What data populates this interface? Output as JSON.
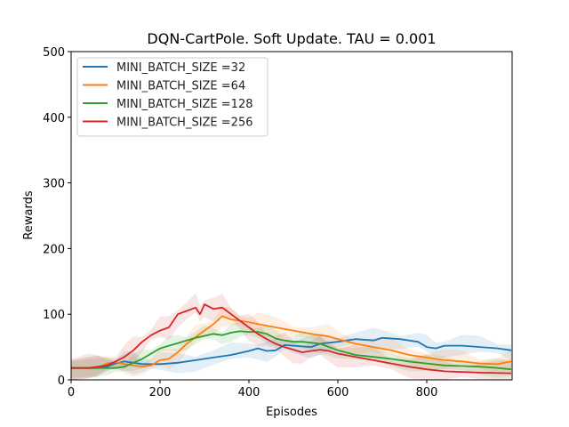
{
  "chart_data": {
    "type": "line",
    "title": "DQN-CartPole. Soft Update. TAU = 0.001",
    "xlabel": "Episodes",
    "ylabel": "Rewards",
    "xlim": [
      0,
      992
    ],
    "ylim": [
      0,
      500
    ],
    "xticks": [
      "0",
      "200",
      "400",
      "600",
      "800"
    ],
    "xtick_values": [
      0,
      200,
      400,
      600,
      800
    ],
    "yticks": [
      "0",
      "100",
      "200",
      "300",
      "400",
      "500"
    ],
    "ytick_values": [
      0,
      100,
      200,
      300,
      400,
      500
    ],
    "grid": false,
    "legend_position": "top-left",
    "series": [
      {
        "name": "MINI_BATCH_SIZE =32",
        "color": "#1f77b4",
        "band": 12,
        "x": [
          0,
          60,
          80,
          100,
          120,
          140,
          160,
          180,
          200,
          240,
          280,
          320,
          360,
          400,
          420,
          440,
          460,
          480,
          500,
          540,
          560,
          600,
          640,
          680,
          700,
          740,
          780,
          800,
          820,
          840,
          880,
          920,
          960,
          990
        ],
        "y": [
          18,
          18,
          20,
          25,
          28,
          26,
          24,
          24,
          24,
          26,
          30,
          34,
          38,
          44,
          48,
          44,
          45,
          53,
          52,
          50,
          55,
          58,
          62,
          60,
          64,
          62,
          58,
          50,
          48,
          52,
          52,
          50,
          48,
          45
        ]
      },
      {
        "name": "MINI_BATCH_SIZE =64",
        "color": "#ff7f0e",
        "band": 12,
        "x": [
          0,
          60,
          80,
          100,
          120,
          140,
          160,
          180,
          200,
          220,
          240,
          260,
          280,
          300,
          320,
          340,
          360,
          380,
          400,
          420,
          460,
          500,
          540,
          580,
          600,
          640,
          680,
          720,
          760,
          800,
          840,
          880,
          920,
          960,
          990
        ],
        "y": [
          18,
          18,
          25,
          27,
          24,
          22,
          20,
          22,
          30,
          32,
          42,
          55,
          65,
          75,
          85,
          97,
          92,
          90,
          88,
          85,
          80,
          75,
          70,
          66,
          62,
          55,
          50,
          45,
          38,
          34,
          30,
          28,
          25,
          24,
          28
        ]
      },
      {
        "name": "MINI_BATCH_SIZE =128",
        "color": "#2ca02c",
        "band": 10,
        "x": [
          0,
          80,
          100,
          120,
          140,
          160,
          180,
          200,
          220,
          240,
          260,
          280,
          300,
          320,
          340,
          360,
          380,
          400,
          420,
          440,
          460,
          480,
          500,
          520,
          560,
          600,
          640,
          680,
          720,
          760,
          800,
          840,
          880,
          920,
          960,
          990
        ],
        "y": [
          18,
          18,
          18,
          20,
          26,
          32,
          40,
          48,
          52,
          56,
          60,
          64,
          67,
          70,
          68,
          72,
          74,
          73,
          73,
          70,
          63,
          60,
          58,
          58,
          55,
          45,
          38,
          35,
          32,
          28,
          25,
          22,
          21,
          20,
          18,
          16
        ]
      },
      {
        "name": "MINI_BATCH_SIZE =256",
        "color": "#d62728",
        "band": 14,
        "x": [
          0,
          40,
          80,
          100,
          120,
          140,
          160,
          180,
          200,
          220,
          240,
          260,
          280,
          290,
          300,
          320,
          340,
          360,
          380,
          400,
          420,
          440,
          460,
          480,
          500,
          520,
          540,
          560,
          580,
          600,
          640,
          680,
          720,
          760,
          800,
          840,
          880,
          920,
          990
        ],
        "y": [
          18,
          18,
          22,
          28,
          35,
          45,
          58,
          68,
          75,
          80,
          100,
          105,
          110,
          100,
          115,
          108,
          110,
          100,
          90,
          80,
          70,
          62,
          55,
          50,
          46,
          42,
          44,
          46,
          44,
          40,
          35,
          30,
          25,
          20,
          16,
          13,
          12,
          11,
          10
        ]
      }
    ]
  }
}
